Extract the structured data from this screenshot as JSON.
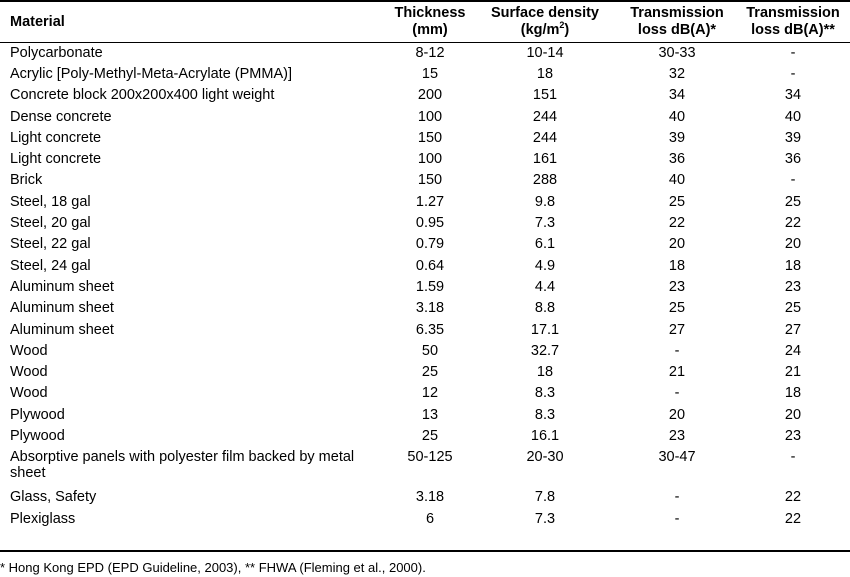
{
  "headers": {
    "material": "Material",
    "thickness_1": "Thickness",
    "thickness_2": "(mm)",
    "density_1": "Surface density",
    "density_2_pre": "(kg/m",
    "density_2_sup": "2",
    "density_2_post": ")",
    "tl1_1": "Transmission",
    "tl1_2": "loss dB(A)*",
    "tl2_1": "Transmission",
    "tl2_2": "loss dB(A)**"
  },
  "rows": [
    {
      "material": "Polycarbonate",
      "thickness": "8-12",
      "density": "10-14",
      "tl1": "30-33",
      "tl2": "-"
    },
    {
      "material": "Acrylic [Poly-Methyl-Meta-Acrylate (PMMA)]",
      "thickness": "15",
      "density": "18",
      "tl1": "32",
      "tl2": "-"
    },
    {
      "material": "Concrete block 200x200x400 light weight",
      "thickness": "200",
      "density": "151",
      "tl1": "34",
      "tl2": "34"
    },
    {
      "material": "Dense concrete",
      "thickness": "100",
      "density": "244",
      "tl1": "40",
      "tl2": "40"
    },
    {
      "material": "Light concrete",
      "thickness": "150",
      "density": "244",
      "tl1": "39",
      "tl2": "39"
    },
    {
      "material": "Light concrete",
      "thickness": "100",
      "density": "161",
      "tl1": "36",
      "tl2": "36"
    },
    {
      "material": "Brick",
      "thickness": "150",
      "density": "288",
      "tl1": "40",
      "tl2": "-"
    },
    {
      "material": "Steel, 18 gal",
      "thickness": "1.27",
      "density": "9.8",
      "tl1": "25",
      "tl2": "25"
    },
    {
      "material": "Steel, 20 gal",
      "thickness": "0.95",
      "density": "7.3",
      "tl1": "22",
      "tl2": "22"
    },
    {
      "material": "Steel, 22 gal",
      "thickness": "0.79",
      "density": "6.1",
      "tl1": "20",
      "tl2": "20"
    },
    {
      "material": "Steel, 24 gal",
      "thickness": "0.64",
      "density": "4.9",
      "tl1": "18",
      "tl2": "18"
    },
    {
      "material": "Aluminum sheet",
      "thickness": "1.59",
      "density": "4.4",
      "tl1": "23",
      "tl2": "23"
    },
    {
      "material": "Aluminum sheet",
      "thickness": "3.18",
      "density": "8.8",
      "tl1": "25",
      "tl2": "25"
    },
    {
      "material": "Aluminum sheet",
      "thickness": "6.35",
      "density": "17.1",
      "tl1": "27",
      "tl2": "27"
    },
    {
      "material": "Wood",
      "thickness": "50",
      "density": "32.7",
      "tl1": "-",
      "tl2": "24"
    },
    {
      "material": "Wood",
      "thickness": "25",
      "density": "18",
      "tl1": "21",
      "tl2": "21"
    },
    {
      "material": "Wood",
      "thickness": "12",
      "density": "8.3",
      "tl1": "-",
      "tl2": "18"
    },
    {
      "material": "Plywood",
      "thickness": "13",
      "density": "8.3",
      "tl1": "20",
      "tl2": "20"
    },
    {
      "material": "Plywood",
      "thickness": "25",
      "density": "16.1",
      "tl1": "23",
      "tl2": "23"
    },
    {
      "material": "Absorptive panels with polyester film backed by metal sheet",
      "thickness": "50-125",
      "density": "20-30",
      "tl1": "30-47",
      "tl2": "-"
    },
    {
      "material": "Glass, Safety",
      "thickness": "3.18",
      "density": "7.8",
      "tl1": "-",
      "tl2": "22"
    },
    {
      "material": "Plexiglass",
      "thickness": "6",
      "density": "7.3",
      "tl1": "-",
      "tl2": "22"
    }
  ],
  "footnote": "* Hong Kong EPD (EPD Guideline, 2003), ** FHWA (Fleming et al., 2000)."
}
